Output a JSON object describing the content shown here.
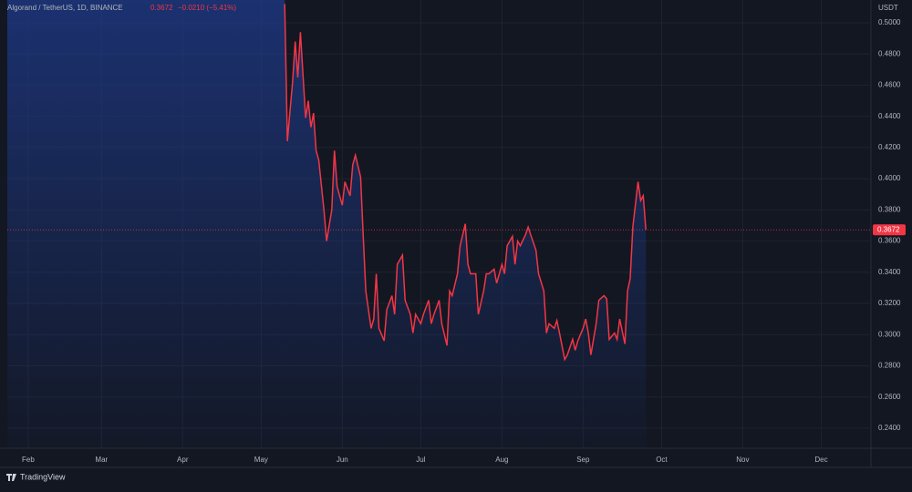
{
  "chart_data": {
    "type": "area",
    "title": "Algorand / TetherUS, 1D, BINANCE",
    "change": "−0.0210 (−5.41%)",
    "y_axis_label": "USDT",
    "brand": "TradingView",
    "last_price": {
      "value": 0.3672,
      "label": "0.3672"
    },
    "xlim": [
      -8,
      322
    ],
    "xticks": [
      {
        "value": 0,
        "label": "Feb"
      },
      {
        "value": 28,
        "label": "Mar"
      },
      {
        "value": 59,
        "label": "Apr"
      },
      {
        "value": 89,
        "label": "May"
      },
      {
        "value": 120,
        "label": "Jun"
      },
      {
        "value": 150,
        "label": "Jul"
      },
      {
        "value": 181,
        "label": "Aug"
      },
      {
        "value": 212,
        "label": "Sep"
      },
      {
        "value": 242,
        "label": "Oct"
      },
      {
        "value": 273,
        "label": "Nov"
      },
      {
        "value": 303,
        "label": "Dec"
      }
    ],
    "ylim": [
      0.2271,
      0.5146
    ],
    "yticks": [
      {
        "value": 0.24,
        "label": "0.2400"
      },
      {
        "value": 0.26,
        "label": "0.2600"
      },
      {
        "value": 0.28,
        "label": "0.2800"
      },
      {
        "value": 0.3,
        "label": "0.3000"
      },
      {
        "value": 0.32,
        "label": "0.3200"
      },
      {
        "value": 0.34,
        "label": "0.3400"
      },
      {
        "value": 0.36,
        "label": "0.3600"
      },
      {
        "value": 0.38,
        "label": "0.3800"
      },
      {
        "value": 0.4,
        "label": "0.4000"
      },
      {
        "value": 0.42,
        "label": "0.4200"
      },
      {
        "value": 0.44,
        "label": "0.4400"
      },
      {
        "value": 0.46,
        "label": "0.4600"
      },
      {
        "value": 0.48,
        "label": "0.4800"
      },
      {
        "value": 0.5,
        "label": "0.5000"
      }
    ],
    "grid": true,
    "series": [
      {
        "color": "#f23645",
        "x": [
          98,
          99,
          101,
          102,
          103,
          104,
          106,
          107,
          108,
          109,
          110,
          111,
          113,
          114,
          116,
          117,
          118,
          120,
          121,
          123,
          124,
          125,
          127,
          128,
          129,
          131,
          132,
          133,
          134,
          136,
          137,
          139,
          140,
          141,
          143,
          144,
          146,
          147,
          148,
          150,
          151,
          153,
          154,
          155,
          157,
          158,
          160,
          161,
          162,
          164,
          165,
          167,
          168,
          169,
          171,
          172,
          174,
          175,
          176,
          178,
          179,
          181,
          182,
          183,
          185,
          186,
          187,
          188,
          190,
          191,
          192,
          194,
          195,
          197,
          198,
          199,
          201,
          202,
          203,
          205,
          206,
          208,
          209,
          210,
          212,
          213,
          214,
          215,
          217,
          218,
          220,
          221,
          222,
          224,
          225,
          226,
          228,
          229,
          230,
          231,
          233,
          234,
          235,
          236
        ],
        "values": [
          0.512,
          0.424,
          0.462,
          0.488,
          0.465,
          0.494,
          0.439,
          0.45,
          0.433,
          0.442,
          0.418,
          0.412,
          0.38,
          0.36,
          0.38,
          0.418,
          0.395,
          0.383,
          0.398,
          0.389,
          0.409,
          0.415,
          0.401,
          0.363,
          0.328,
          0.304,
          0.31,
          0.339,
          0.304,
          0.296,
          0.316,
          0.325,
          0.313,
          0.345,
          0.351,
          0.322,
          0.313,
          0.301,
          0.313,
          0.307,
          0.313,
          0.322,
          0.307,
          0.313,
          0.322,
          0.307,
          0.293,
          0.328,
          0.325,
          0.339,
          0.357,
          0.371,
          0.345,
          0.339,
          0.339,
          0.313,
          0.328,
          0.339,
          0.339,
          0.342,
          0.333,
          0.345,
          0.339,
          0.357,
          0.363,
          0.345,
          0.36,
          0.357,
          0.364,
          0.369,
          0.364,
          0.354,
          0.339,
          0.328,
          0.301,
          0.307,
          0.304,
          0.309,
          0.301,
          0.284,
          0.287,
          0.297,
          0.29,
          0.296,
          0.304,
          0.31,
          0.301,
          0.287,
          0.307,
          0.322,
          0.325,
          0.323,
          0.297,
          0.301,
          0.297,
          0.31,
          0.294,
          0.328,
          0.336,
          0.369,
          0.398,
          0.386,
          0.389,
          0.3672
        ]
      }
    ]
  }
}
